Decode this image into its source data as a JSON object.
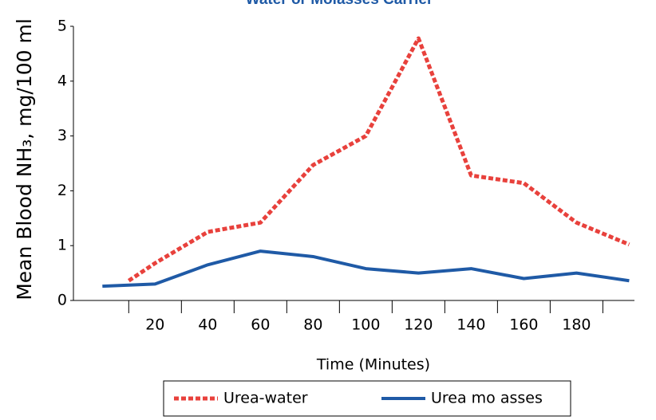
{
  "chart_data": {
    "type": "line",
    "title": "Water or Molasses Carrier",
    "xlabel": "Time (Minutes)",
    "ylabel": "Mean Blood NH₃, mg/100 ml",
    "xlim": [
      -11,
      202
    ],
    "ylim": [
      0,
      5
    ],
    "xticks": [
      20,
      40,
      60,
      80,
      100,
      120,
      140,
      160,
      180
    ],
    "xtick_marks": [
      10,
      30,
      50,
      70,
      90,
      110,
      130,
      150,
      170,
      190
    ],
    "yticks": [
      0,
      1,
      2,
      3,
      4,
      5
    ],
    "series": [
      {
        "name": "Urea-water",
        "color": "#e8413c",
        "dashed": true,
        "x": [
          10,
          20,
          40,
          60,
          80,
          100,
          120,
          140,
          160,
          180,
          200
        ],
        "values": [
          0.36,
          0.68,
          1.25,
          1.42,
          2.47,
          3.0,
          4.78,
          2.28,
          2.14,
          1.42,
          1.02
        ]
      },
      {
        "name": "Urea mo asses",
        "color": "#1f5aa6",
        "dashed": false,
        "x": [
          0,
          20,
          40,
          60,
          80,
          100,
          120,
          140,
          160,
          180,
          200
        ],
        "values": [
          0.26,
          0.3,
          0.65,
          0.9,
          0.8,
          0.58,
          0.5,
          0.58,
          0.4,
          0.5,
          0.36
        ]
      }
    ]
  }
}
